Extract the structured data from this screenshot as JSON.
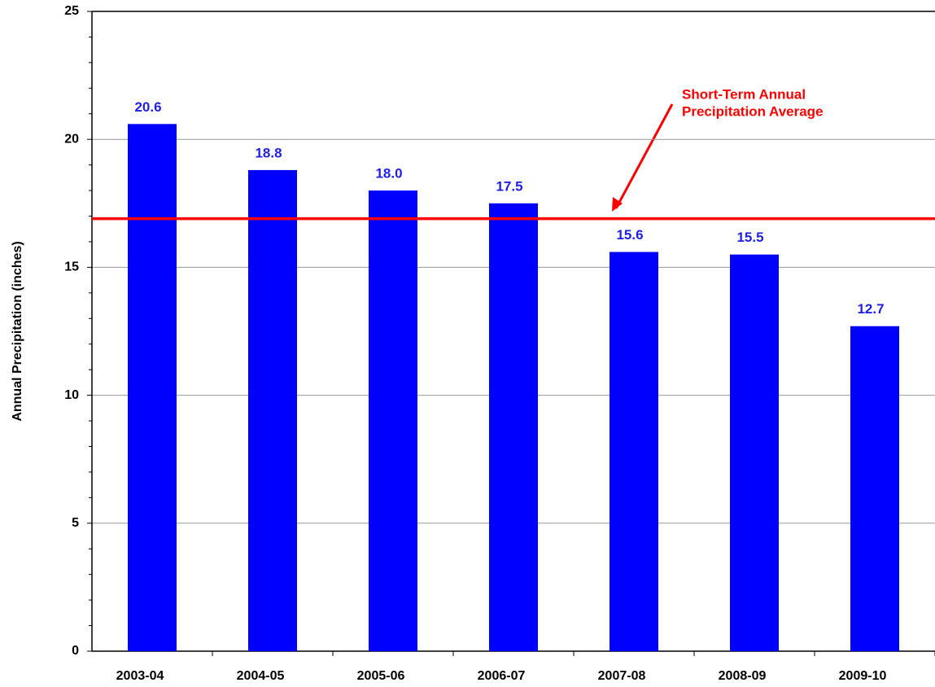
{
  "chart_data": {
    "type": "bar",
    "y_label": "Annual Precipitation (inches)",
    "categories": [
      "2003-04",
      "2004-05",
      "2005-06",
      "2006-07",
      "2007-08",
      "2008-09",
      "2009-10"
    ],
    "values": [
      20.6,
      18.8,
      18.0,
      17.5,
      15.6,
      15.5,
      12.7
    ],
    "value_labels": [
      "20.6",
      "18.8",
      "18.0",
      "17.5",
      "15.6",
      "15.5",
      "12.7"
    ],
    "color": "#0000ff",
    "label_color": "#1f1fe6",
    "ylim": [
      0,
      25
    ],
    "yticks": [
      0,
      5,
      10,
      15,
      20,
      25
    ],
    "yticks_minor": [
      1,
      2,
      3,
      4,
      6,
      7,
      8,
      9,
      11,
      12,
      13,
      14,
      16,
      17,
      18,
      19,
      21,
      22,
      23,
      24
    ],
    "grid": true,
    "reference_line": {
      "value": 16.9,
      "color": "#ff0000",
      "label_lines": [
        "Short-Term Annual",
        "Precipitation Average"
      ]
    }
  }
}
